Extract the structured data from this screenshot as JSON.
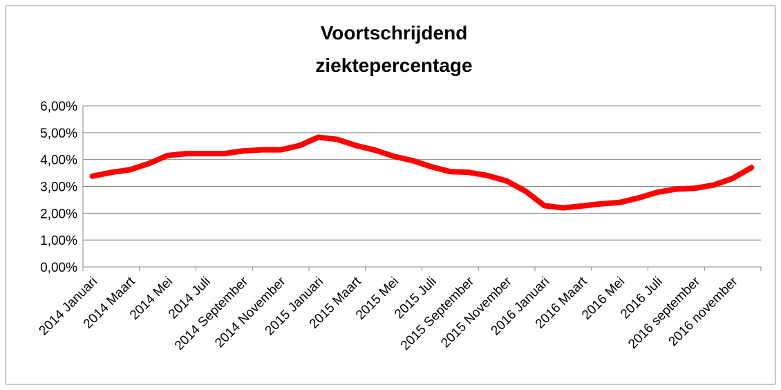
{
  "chart_data": {
    "type": "line",
    "title": [
      "Voortschrijdend",
      "ziektepercentage"
    ],
    "categories": [
      "2014 Januari",
      null,
      "2014 Maart",
      null,
      "2014 Mei",
      null,
      "2014 Juli",
      null,
      "2014 September",
      null,
      "2014 November",
      null,
      "2015 Januari",
      null,
      "2015 Maart",
      null,
      "2015 Mei",
      null,
      "2015 Juli",
      null,
      "2015 September",
      null,
      "2015 November",
      null,
      "2016 Januari",
      null,
      "2016 Maart",
      null,
      "2016 Mei",
      null,
      "2016 Juli",
      null,
      "2016 september",
      null,
      "2016 november",
      null
    ],
    "series": [
      {
        "color": "#ff0000",
        "values": [
          3.38,
          3.52,
          3.62,
          3.85,
          4.15,
          4.22,
          4.22,
          4.22,
          4.32,
          4.36,
          4.36,
          4.52,
          4.83,
          4.75,
          4.52,
          4.35,
          4.12,
          3.96,
          3.73,
          3.55,
          3.52,
          3.4,
          3.2,
          2.82,
          2.28,
          2.2,
          2.27,
          2.35,
          2.4,
          2.57,
          2.78,
          2.9,
          2.93,
          3.05,
          3.3,
          3.7
        ]
      }
    ],
    "ylim": [
      0,
      6
    ],
    "yticks": [
      {
        "value": 0,
        "label": "0,00%"
      },
      {
        "value": 1,
        "label": "1,00%"
      },
      {
        "value": 2,
        "label": "2,00%"
      },
      {
        "value": 3,
        "label": "3,00%"
      },
      {
        "value": 4,
        "label": "4,00%"
      },
      {
        "value": 5,
        "label": "5,00%"
      },
      {
        "value": 6,
        "label": "6,00%"
      }
    ],
    "grid": true
  }
}
